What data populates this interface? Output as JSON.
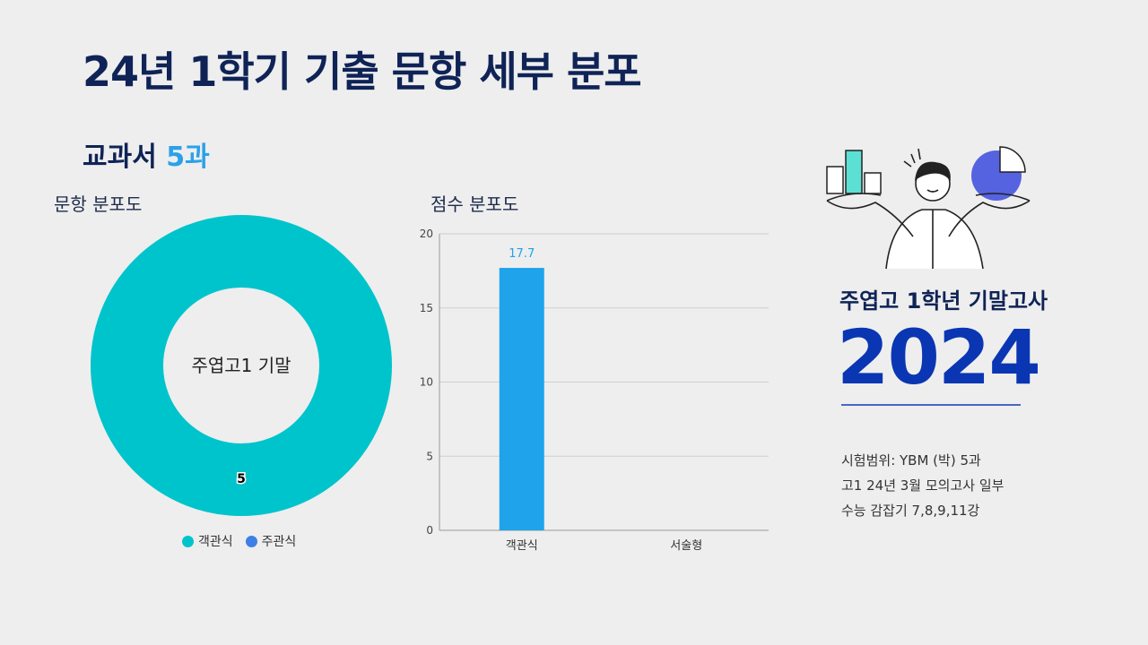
{
  "header": {
    "title": "24년 1학기 기출 문항 세부 분포",
    "subtitle_prefix": "교과서",
    "subtitle_highlight": "5과"
  },
  "chart_data": [
    {
      "type": "pie",
      "title": "문항 분포도",
      "center_label": "주엽고1 기말",
      "categories": [
        "객관식",
        "주관식"
      ],
      "values": [
        5,
        0
      ],
      "colors": [
        "#00c4cc",
        "#3d7fe6"
      ],
      "legend": [
        "객관식",
        "주관식"
      ],
      "legend_position": "bottom"
    },
    {
      "type": "bar",
      "title": "점수 분포도",
      "categories": [
        "객관식",
        "서술형"
      ],
      "values": [
        17.7,
        0
      ],
      "data_labels": [
        "17.7",
        ""
      ],
      "ylim": [
        0,
        20
      ],
      "yticks": [
        0,
        5,
        10,
        15,
        20
      ],
      "grid": true,
      "bar_color": "#1fa3ea",
      "label_color": "#1fa3ea"
    }
  ],
  "sidebar": {
    "exam_name": "주엽고 1학년 기말고사",
    "year": "2024",
    "info_lines": [
      "시험범위: YBM (박) 5과",
      "고1 24년 3월 모의고사 일부",
      "수능 감잡기 7,8,9,11강"
    ],
    "illustration_icon": "person-holding-charts-icon"
  },
  "colors": {
    "navy": "#0f2356",
    "accent_blue": "#2aa1e8",
    "year_blue": "#0a36b3"
  }
}
